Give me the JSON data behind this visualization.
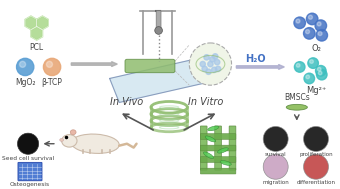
{
  "bg_color": "#ffffff",
  "pcl_label": "PCL",
  "mgo2_label": "MgO₂",
  "btcp_label": "β-TCP",
  "h2o_label": "H₂O",
  "o2_label": "O₂",
  "mg2_label": "Mg²⁺",
  "bmscs_label": "BMSCs",
  "in_vivo_label": "In Vivo",
  "in_vitro_label": "In Vitro",
  "seed_cell_label": "Seed cell survival",
  "osteogenesis_label": "Osteogenesis",
  "survival_label": "survival",
  "proliferation_label": "proliferation",
  "migration_label": "migration",
  "differentiation_label": "differentiation",
  "pcl_color": "#a8d888",
  "mgo2_color": "#5b9fd4",
  "btcp_color": "#e8a878",
  "scaffold_green": "#8fbc6e",
  "scaffold_dark": "#5a8a3e",
  "o2_color": "#4472c4",
  "mg2_color": "#3dbfbf",
  "platform_color": "#b8d8e8",
  "arrow_gray": "#999999",
  "h2o_color": "#4472c4",
  "label_color": "#444444"
}
